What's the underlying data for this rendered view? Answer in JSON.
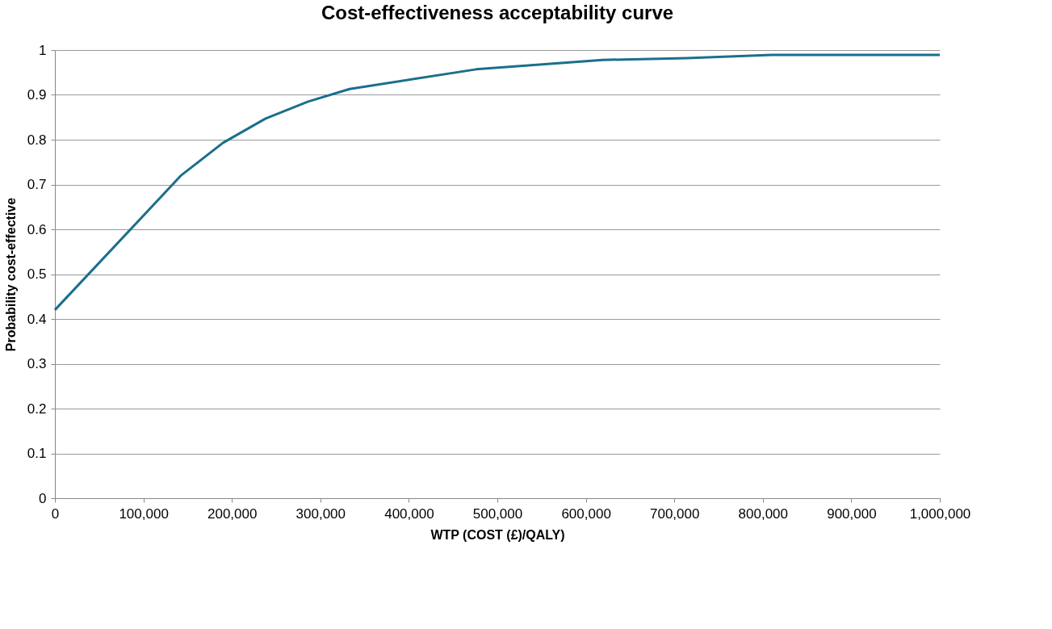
{
  "chart_data": {
    "type": "line",
    "title": "Cost-effectiveness acceptability curve",
    "xlabel": "WTP (COST (£)/QALY)",
    "ylabel": "Probability cost-effective",
    "x": [
      0,
      143000,
      190000,
      238000,
      286000,
      333000,
      476000,
      619000,
      714000,
      810000,
      1000000
    ],
    "series": [
      {
        "color": "#1b6f8c",
        "values": [
          0.42,
          0.721,
          0.793,
          0.847,
          0.885,
          0.913,
          0.957,
          0.978,
          0.982,
          0.989,
          0.989
        ]
      }
    ],
    "xlim": [
      0,
      1000000
    ],
    "xticks": [
      {
        "value": 0,
        "label": "0"
      },
      {
        "value": 100000,
        "label": "100,000"
      },
      {
        "value": 200000,
        "label": "200,000"
      },
      {
        "value": 300000,
        "label": "300,000"
      },
      {
        "value": 400000,
        "label": "400,000"
      },
      {
        "value": 500000,
        "label": "500,000"
      },
      {
        "value": 600000,
        "label": "600,000"
      },
      {
        "value": 700000,
        "label": "700,000"
      },
      {
        "value": 800000,
        "label": "800,000"
      },
      {
        "value": 900000,
        "label": "900,000"
      },
      {
        "value": 1000000,
        "label": "1,000,000"
      }
    ],
    "ylim": [
      0,
      1
    ],
    "yticks": [
      0,
      0.1,
      0.2,
      0.3,
      0.4,
      0.5,
      0.6,
      0.7,
      0.8,
      0.9,
      1
    ],
    "grid": "y",
    "legend": false,
    "marker": "none",
    "line_style": "solid"
  }
}
